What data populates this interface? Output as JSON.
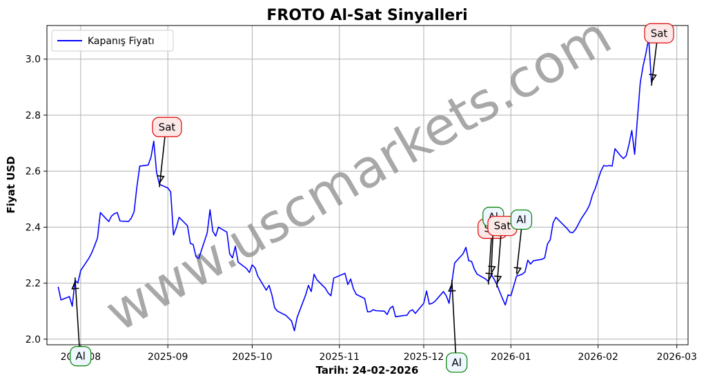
{
  "watermark": "www.uscmarkets.com",
  "chart_data": {
    "type": "line",
    "title": "FROTO Al-Sat Sinyalleri",
    "xlabel": "Tarih: 24-02-2026",
    "ylabel": "Fiyat USD",
    "x_type": "date",
    "xlim": [
      "2025-07-20",
      "2026-03-05"
    ],
    "ylim": [
      1.98,
      3.12
    ],
    "x_ticks": [
      "2025-08-01",
      "2025-09-01",
      "2025-10-01",
      "2025-11-01",
      "2025-12-01",
      "2026-01-01",
      "2026-02-01",
      "2026-03-01"
    ],
    "x_tick_labels": [
      "2025-08",
      "2025-09",
      "2025-10",
      "2025-11",
      "2025-12",
      "2026-01",
      "2026-02",
      "2026-03"
    ],
    "y_ticks": [
      2.0,
      2.2,
      2.4,
      2.6,
      2.8,
      3.0
    ],
    "y_tick_labels": [
      "2.0",
      "2.2",
      "2.4",
      "2.6",
      "2.8",
      "3.0"
    ],
    "grid": true,
    "legend_position": "top-left",
    "series": [
      {
        "name": "Kapanış Fiyatı",
        "color": "#0000ff",
        "points": [
          [
            "2025-07-24",
            2.187
          ],
          [
            "2025-07-25",
            2.14
          ],
          [
            "2025-07-28",
            2.152
          ],
          [
            "2025-07-29",
            2.118
          ],
          [
            "2025-07-30",
            2.21
          ],
          [
            "2025-07-31",
            2.2
          ],
          [
            "2025-08-01",
            2.245
          ],
          [
            "2025-08-04",
            2.29
          ],
          [
            "2025-08-05",
            2.31
          ],
          [
            "2025-08-06",
            2.335
          ],
          [
            "2025-08-07",
            2.362
          ],
          [
            "2025-08-08",
            2.452
          ],
          [
            "2025-08-11",
            2.42
          ],
          [
            "2025-08-12",
            2.44
          ],
          [
            "2025-08-13",
            2.448
          ],
          [
            "2025-08-14",
            2.452
          ],
          [
            "2025-08-15",
            2.422
          ],
          [
            "2025-08-18",
            2.42
          ],
          [
            "2025-08-19",
            2.432
          ],
          [
            "2025-08-20",
            2.455
          ],
          [
            "2025-08-21",
            2.545
          ],
          [
            "2025-08-22",
            2.618
          ],
          [
            "2025-08-25",
            2.622
          ],
          [
            "2025-08-26",
            2.65
          ],
          [
            "2025-08-27",
            2.707
          ],
          [
            "2025-08-28",
            2.595
          ],
          [
            "2025-08-29",
            2.553
          ],
          [
            "2025-09-01",
            2.54
          ],
          [
            "2025-09-02",
            2.526
          ],
          [
            "2025-09-03",
            2.372
          ],
          [
            "2025-09-04",
            2.398
          ],
          [
            "2025-09-05",
            2.435
          ],
          [
            "2025-09-08",
            2.405
          ],
          [
            "2025-09-09",
            2.342
          ],
          [
            "2025-09-10",
            2.338
          ],
          [
            "2025-09-11",
            2.295
          ],
          [
            "2025-09-12",
            2.288
          ],
          [
            "2025-09-15",
            2.38
          ],
          [
            "2025-09-16",
            2.462
          ],
          [
            "2025-09-17",
            2.385
          ],
          [
            "2025-09-18",
            2.368
          ],
          [
            "2025-09-19",
            2.4
          ],
          [
            "2025-09-22",
            2.382
          ],
          [
            "2025-09-23",
            2.305
          ],
          [
            "2025-09-24",
            2.29
          ],
          [
            "2025-09-25",
            2.332
          ],
          [
            "2025-09-26",
            2.275
          ],
          [
            "2025-09-29",
            2.252
          ],
          [
            "2025-09-30",
            2.238
          ],
          [
            "2025-10-01",
            2.265
          ],
          [
            "2025-10-02",
            2.255
          ],
          [
            "2025-10-03",
            2.225
          ],
          [
            "2025-10-06",
            2.175
          ],
          [
            "2025-10-07",
            2.192
          ],
          [
            "2025-10-08",
            2.158
          ],
          [
            "2025-10-09",
            2.112
          ],
          [
            "2025-10-10",
            2.1
          ],
          [
            "2025-10-13",
            2.085
          ],
          [
            "2025-10-14",
            2.075
          ],
          [
            "2025-10-15",
            2.065
          ],
          [
            "2025-10-16",
            2.03
          ],
          [
            "2025-10-17",
            2.078
          ],
          [
            "2025-10-20",
            2.158
          ],
          [
            "2025-10-21",
            2.192
          ],
          [
            "2025-10-22",
            2.17
          ],
          [
            "2025-10-23",
            2.232
          ],
          [
            "2025-10-24",
            2.212
          ],
          [
            "2025-10-27",
            2.182
          ],
          [
            "2025-10-28",
            2.165
          ],
          [
            "2025-10-29",
            2.155
          ],
          [
            "2025-10-30",
            2.218
          ],
          [
            "2025-11-03",
            2.235
          ],
          [
            "2025-11-04",
            2.195
          ],
          [
            "2025-11-05",
            2.215
          ],
          [
            "2025-11-06",
            2.18
          ],
          [
            "2025-11-07",
            2.16
          ],
          [
            "2025-11-10",
            2.145
          ],
          [
            "2025-11-11",
            2.098
          ],
          [
            "2025-11-12",
            2.098
          ],
          [
            "2025-11-13",
            2.105
          ],
          [
            "2025-11-14",
            2.102
          ],
          [
            "2025-11-17",
            2.1
          ],
          [
            "2025-11-18",
            2.088
          ],
          [
            "2025-11-19",
            2.11
          ],
          [
            "2025-11-20",
            2.118
          ],
          [
            "2025-11-21",
            2.08
          ],
          [
            "2025-11-24",
            2.085
          ],
          [
            "2025-11-25",
            2.085
          ],
          [
            "2025-11-26",
            2.1
          ],
          [
            "2025-11-27",
            2.105
          ],
          [
            "2025-11-28",
            2.092
          ],
          [
            "2025-12-01",
            2.128
          ],
          [
            "2025-12-02",
            2.172
          ],
          [
            "2025-12-03",
            2.125
          ],
          [
            "2025-12-04",
            2.128
          ],
          [
            "2025-12-05",
            2.135
          ],
          [
            "2025-12-08",
            2.17
          ],
          [
            "2025-12-09",
            2.155
          ],
          [
            "2025-12-10",
            2.128
          ],
          [
            "2025-12-11",
            2.202
          ],
          [
            "2025-12-12",
            2.272
          ],
          [
            "2025-12-15",
            2.305
          ],
          [
            "2025-12-16",
            2.328
          ],
          [
            "2025-12-17",
            2.28
          ],
          [
            "2025-12-18",
            2.278
          ],
          [
            "2025-12-19",
            2.25
          ],
          [
            "2025-12-20",
            2.232
          ],
          [
            "2025-12-23",
            2.215
          ],
          [
            "2025-12-24",
            2.205
          ],
          [
            "2025-12-25",
            2.23
          ],
          [
            "2025-12-26",
            2.215
          ],
          [
            "2025-12-27",
            2.195
          ],
          [
            "2025-12-29",
            2.145
          ],
          [
            "2025-12-30",
            2.122
          ],
          [
            "2025-12-31",
            2.158
          ],
          [
            "2026-01-01",
            2.155
          ],
          [
            "2026-01-02",
            2.19
          ],
          [
            "2026-01-03",
            2.225
          ],
          [
            "2026-01-05",
            2.232
          ],
          [
            "2026-01-06",
            2.24
          ],
          [
            "2026-01-07",
            2.282
          ],
          [
            "2026-01-08",
            2.268
          ],
          [
            "2026-01-09",
            2.28
          ],
          [
            "2026-01-12",
            2.285
          ],
          [
            "2026-01-13",
            2.29
          ],
          [
            "2026-01-14",
            2.34
          ],
          [
            "2026-01-15",
            2.355
          ],
          [
            "2026-01-16",
            2.415
          ],
          [
            "2026-01-17",
            2.435
          ],
          [
            "2026-01-19",
            2.415
          ],
          [
            "2026-01-20",
            2.405
          ],
          [
            "2026-01-21",
            2.395
          ],
          [
            "2026-01-22",
            2.382
          ],
          [
            "2026-01-23",
            2.38
          ],
          [
            "2026-01-24",
            2.392
          ],
          [
            "2026-01-26",
            2.43
          ],
          [
            "2026-01-28",
            2.46
          ],
          [
            "2026-01-29",
            2.48
          ],
          [
            "2026-01-30",
            2.515
          ],
          [
            "2026-01-31",
            2.538
          ],
          [
            "2026-02-02",
            2.6
          ],
          [
            "2026-02-03",
            2.62
          ],
          [
            "2026-02-04",
            2.618
          ],
          [
            "2026-02-05",
            2.62
          ],
          [
            "2026-02-06",
            2.618
          ],
          [
            "2026-02-07",
            2.68
          ],
          [
            "2026-02-09",
            2.655
          ],
          [
            "2026-02-10",
            2.645
          ],
          [
            "2026-02-11",
            2.655
          ],
          [
            "2026-02-12",
            2.695
          ],
          [
            "2026-02-13",
            2.745
          ],
          [
            "2026-02-14",
            2.66
          ],
          [
            "2026-02-16",
            2.915
          ],
          [
            "2026-02-17",
            2.975
          ],
          [
            "2026-02-18",
            3.02
          ],
          [
            "2026-02-19",
            3.075
          ],
          [
            "2026-02-20",
            2.915
          ]
        ]
      }
    ],
    "annotations": [
      {
        "label": "Al",
        "type": "buy",
        "point": [
          "2025-07-30",
          2.21
        ]
      },
      {
        "label": "Sat",
        "type": "sell",
        "point": [
          "2025-08-29",
          2.553
        ]
      },
      {
        "label": "Al",
        "type": "buy",
        "point": [
          "2025-12-11",
          2.202
        ]
      },
      {
        "label": "Sat",
        "type": "sell",
        "point": [
          "2025-12-24",
          2.205
        ]
      },
      {
        "label": "Al",
        "type": "buy",
        "point": [
          "2025-12-25",
          2.23
        ]
      },
      {
        "label": "Sat",
        "type": "sell",
        "point": [
          "2025-12-27",
          2.195
        ]
      },
      {
        "label": "Al",
        "type": "buy",
        "point": [
          "2026-01-03",
          2.225
        ]
      },
      {
        "label": "Sat",
        "type": "sell",
        "point": [
          "2026-02-20",
          2.915
        ]
      }
    ],
    "colors": {
      "buy_edge": "#008000",
      "buy_fill": "#eef7ff",
      "sell_edge": "#e00000",
      "sell_fill": "#fde8e8"
    }
  }
}
